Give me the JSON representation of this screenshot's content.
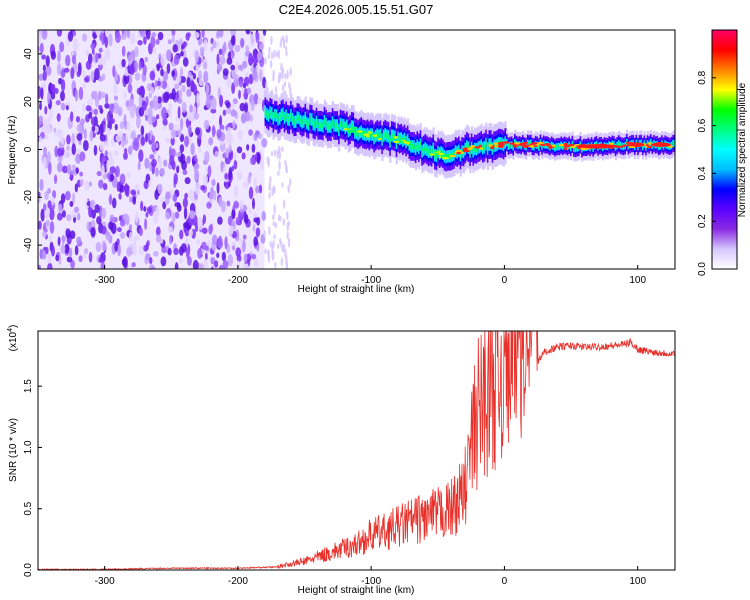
{
  "title": "C2E4.2026.005.15.51.G07",
  "chart_data": [
    {
      "type": "heatmap",
      "title": "C2E4.2026.005.15.51.G07",
      "xlabel": "Height of straight line (km)",
      "ylabel": "Frequency (Hz)",
      "xlim": [
        -350,
        128
      ],
      "ylim": [
        -50,
        50
      ],
      "xticks": [
        -300,
        -200,
        -100,
        0,
        100
      ],
      "yticks": [
        -40,
        -20,
        0,
        20,
        40
      ],
      "colorbar": {
        "label": "Normalized spectral amplitude",
        "range": [
          0,
          1
        ],
        "ticks": [
          0.0,
          0.2,
          0.4,
          0.6,
          0.8
        ],
        "colormap": [
          "#ffffff",
          "#d6c8ff",
          "#8a2be2",
          "#5a00ff",
          "#0000ff",
          "#00bfff",
          "#00ffff",
          "#00ff7f",
          "#00ff00",
          "#ffff00",
          "#ff8000",
          "#ff0000",
          "#ff0066"
        ]
      },
      "regions": [
        {
          "name": "noise",
          "x_range": [
            -350,
            -180
          ],
          "freq_range": [
            -50,
            50
          ],
          "amplitude": "low (0.1-0.2)"
        },
        {
          "name": "sparse-tail",
          "x_range": [
            -180,
            -160
          ],
          "freq_range": [
            -50,
            50
          ],
          "amplitude": "very low"
        }
      ],
      "ridge": [
        {
          "x": -180,
          "freq": 15
        },
        {
          "x": -160,
          "freq": 13
        },
        {
          "x": -140,
          "freq": 11
        },
        {
          "x": -120,
          "freq": 9
        },
        {
          "x": -100,
          "freq": 6
        },
        {
          "x": -80,
          "freq": 4
        },
        {
          "x": -60,
          "freq": 0
        },
        {
          "x": -45,
          "freq": -3
        },
        {
          "x": -35,
          "freq": -1
        },
        {
          "x": -20,
          "freq": 1
        },
        {
          "x": 0,
          "freq": 2
        },
        {
          "x": 20,
          "freq": 2
        },
        {
          "x": 60,
          "freq": 1
        },
        {
          "x": 90,
          "freq": 2
        },
        {
          "x": 128,
          "freq": 2
        }
      ]
    },
    {
      "type": "line",
      "xlabel": "Height of straight line (km)",
      "ylabel": "SNR (10 * v/v)",
      "yscale_label": "(x10",
      "yscale_exp": "4",
      "color": "#e8302a",
      "xlim": [
        -350,
        128
      ],
      "ylim": [
        0,
        1.95
      ],
      "xticks": [
        -300,
        -200,
        -100,
        0,
        100
      ],
      "yticks": [
        "0.0",
        "0.5",
        "1.0",
        "1.5"
      ],
      "series": [
        {
          "name": "SNR",
          "x": [
            -350,
            -300,
            -250,
            -200,
            -170,
            -150,
            -130,
            -110,
            -100,
            -90,
            -80,
            -70,
            -60,
            -50,
            -40,
            -30,
            -25,
            -20,
            -15,
            -10,
            -5,
            0,
            5,
            10,
            15,
            20,
            25,
            30,
            40,
            50,
            60,
            70,
            80,
            90,
            95,
            100,
            110,
            120,
            128
          ],
          "y": [
            0.0,
            0.0,
            0.01,
            0.01,
            0.02,
            0.05,
            0.1,
            0.15,
            0.2,
            0.22,
            0.25,
            0.28,
            0.3,
            0.32,
            0.35,
            0.45,
            0.7,
            0.9,
            1.0,
            1.1,
            1.15,
            1.2,
            1.3,
            1.4,
            1.5,
            1.6,
            1.7,
            1.78,
            1.82,
            1.83,
            1.82,
            1.82,
            1.83,
            1.84,
            1.86,
            1.8,
            1.78,
            1.77,
            1.77
          ]
        }
      ]
    }
  ]
}
